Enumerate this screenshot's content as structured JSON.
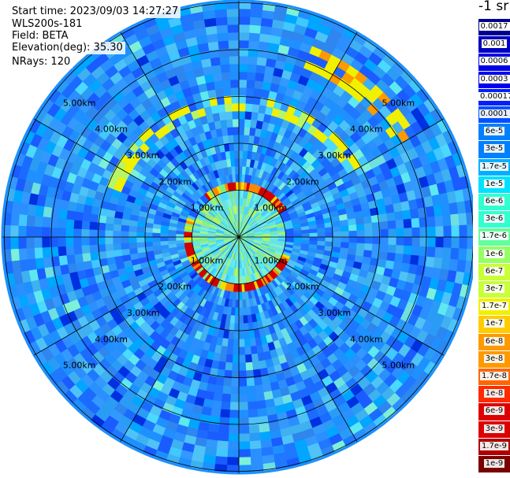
{
  "header": {
    "start_time": "Start time: 2023/09/03 14:27:27",
    "instrument": "WLS200s-181",
    "field": "Field: BETA",
    "elevation": "Elevation(deg): 35.30",
    "nrays": "NRays: 120"
  },
  "colorbar": {
    "unit": "-1 sr",
    "ticks": [
      "0.0017",
      "0.001",
      "0.0006",
      "0.0003",
      "0.00017",
      "0.0001",
      "6e-5",
      "3e-5",
      "1.7e-5",
      "1e-5",
      "6e-6",
      "3e-6",
      "1.7e-6",
      "1e-6",
      "6e-7",
      "3e-7",
      "1.7e-7",
      "1e-7",
      "6e-8",
      "3e-8",
      "1.7e-8",
      "1e-8",
      "6e-9",
      "3e-9",
      "1.7e-9",
      "1e-9"
    ],
    "colors": [
      "#7a0000",
      "#b00000",
      "#dd0000",
      "#ff2a00",
      "#ff6600",
      "#ff9900",
      "#ffcc00",
      "#f0f000",
      "#c8ff36",
      "#96ff66",
      "#60ff9c",
      "#30ffd0",
      "#00e0ff",
      "#00b0ff",
      "#0080ff",
      "#0050ff",
      "#0020ff",
      "#0000ec",
      "#0000c0",
      "#000090"
    ]
  },
  "range_rings": [
    "1.00km",
    "2.00km",
    "3.00km",
    "4.00km",
    "5.00km"
  ]
}
